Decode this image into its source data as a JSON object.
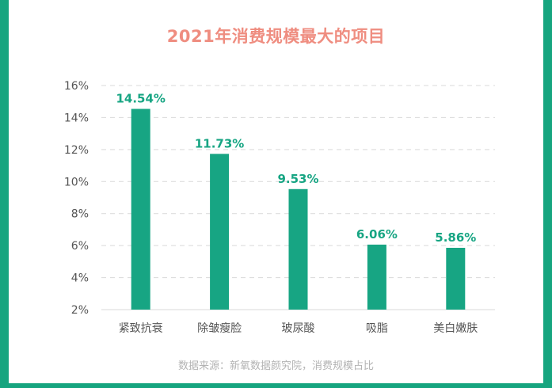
{
  "colors": {
    "frame": "#16a57f",
    "bar": "#17a583",
    "title": "#ef8d80",
    "label": "#17a583",
    "tick": "#555555",
    "grid": "#d9d9d9"
  },
  "source_note": "数据来源：新氧数据颜究院，消费规模占比",
  "chart_data": {
    "type": "bar",
    "title": "2021年消费规模最大的项目",
    "xlabel": "",
    "ylabel": "",
    "categories": [
      "紧致抗衰",
      "除皱瘦脸",
      "玻尿酸",
      "吸脂",
      "美白嫩肤"
    ],
    "values": [
      14.54,
      11.73,
      9.53,
      6.06,
      5.86
    ],
    "value_labels": [
      "14.54%",
      "11.73%",
      "9.53%",
      "6.06%",
      "5.86%"
    ],
    "ylim": [
      2,
      16
    ],
    "yticks": [
      2,
      4,
      6,
      8,
      10,
      12,
      14,
      16
    ],
    "ytick_labels": [
      "2%",
      "4%",
      "6%",
      "8%",
      "10%",
      "12%",
      "14%",
      "16%"
    ],
    "grid": true,
    "legend": "none"
  }
}
